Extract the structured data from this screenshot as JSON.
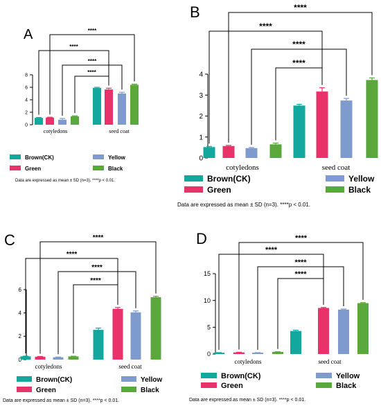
{
  "colors": {
    "brown_ck": "#13A89E",
    "green": "#E8336A",
    "yellow": "#7F9ACD",
    "black": "#5AA83C",
    "axis": "#000000"
  },
  "chart_data": [
    {
      "panel": "A",
      "type": "bar",
      "categories": [
        "cotyledons",
        "seed coat"
      ],
      "series": [
        {
          "name": "Brown(CK)",
          "values": [
            1.1,
            5.9
          ],
          "errors": [
            0.05,
            0.1
          ]
        },
        {
          "name": "Green",
          "values": [
            1.15,
            5.65
          ],
          "errors": [
            0.05,
            0.2
          ]
        },
        {
          "name": "Yellow",
          "values": [
            0.8,
            5.0
          ],
          "errors": [
            0.2,
            0.2
          ]
        },
        {
          "name": "Black",
          "values": [
            1.35,
            6.4
          ],
          "errors": [
            0.07,
            0.1
          ]
        }
      ],
      "ylim": [
        0,
        8
      ],
      "yticks": [
        0,
        2,
        4,
        6,
        8
      ],
      "significance": [
        "****",
        "****",
        "****",
        "****"
      ],
      "legend": [
        "Brown(CK)",
        "Green",
        "Yellow",
        "Black"
      ],
      "footnote": "Data are expressed as mean ± SD (n=3). ****p < 0.01."
    },
    {
      "panel": "B",
      "type": "bar",
      "categories": [
        "cotyledons",
        "seed coat"
      ],
      "series": [
        {
          "name": "Brown(CK)",
          "values": [
            0.52,
            2.5
          ],
          "errors": [
            0.03,
            0.06
          ]
        },
        {
          "name": "Green",
          "values": [
            0.57,
            3.17
          ],
          "errors": [
            0.03,
            0.18
          ]
        },
        {
          "name": "Yellow",
          "values": [
            0.47,
            2.74
          ],
          "errors": [
            0.03,
            0.1
          ]
        },
        {
          "name": "Black",
          "values": [
            0.65,
            3.72
          ],
          "errors": [
            0.06,
            0.1
          ]
        }
      ],
      "ylim": [
        0,
        4
      ],
      "yticks": [
        0,
        1,
        2,
        3,
        4
      ],
      "significance": [
        "****",
        "****",
        "****",
        "****"
      ],
      "legend": [
        "Brown(CK)",
        "Green",
        "Yellow",
        "Black"
      ],
      "footnote": "Data are expressed as mean ± SD (n=3). ****p < 0.01."
    },
    {
      "panel": "C",
      "type": "bar",
      "categories": [
        "cotyledons",
        "seed coat"
      ],
      "series": [
        {
          "name": "Brown(CK)",
          "values": [
            0.28,
            2.55
          ],
          "errors": [
            0.02,
            0.15
          ]
        },
        {
          "name": "Green",
          "values": [
            0.25,
            4.35
          ],
          "errors": [
            0.02,
            0.12
          ]
        },
        {
          "name": "Yellow",
          "values": [
            0.2,
            4.05
          ],
          "errors": [
            0.02,
            0.12
          ]
        },
        {
          "name": "Black",
          "values": [
            0.27,
            5.35
          ],
          "errors": [
            0.02,
            0.08
          ]
        }
      ],
      "ylim": [
        0,
        6
      ],
      "yticks": [
        0,
        2,
        4,
        6
      ],
      "significance": [
        "****",
        "****",
        "****",
        "****"
      ],
      "legend": [
        "Brown(CK)",
        "Green",
        "Yellow",
        "Black"
      ],
      "footnote": "Data are expressed as mean ± SD (n=3). ****p < 0.01."
    },
    {
      "panel": "D",
      "type": "bar",
      "categories": [
        "cotyledons",
        "seed coat"
      ],
      "series": [
        {
          "name": "Brown(CK)",
          "values": [
            0.25,
            4.3
          ],
          "errors": [
            0.02,
            0.15
          ]
        },
        {
          "name": "Green",
          "values": [
            0.3,
            8.6
          ],
          "errors": [
            0.03,
            0.1
          ]
        },
        {
          "name": "Yellow",
          "values": [
            0.25,
            8.3
          ],
          "errors": [
            0.02,
            0.1
          ]
        },
        {
          "name": "Black",
          "values": [
            0.4,
            9.5
          ],
          "errors": [
            0.03,
            0.1
          ]
        }
      ],
      "ylim": [
        0,
        15
      ],
      "yticks": [
        0,
        5,
        10,
        15
      ],
      "significance": [
        "****",
        "****",
        "****",
        "****"
      ],
      "legend": [
        "Brown(CK)",
        "Green",
        "Yellow",
        "Black"
      ],
      "footnote": "Data are expressed as mean ± SD (n=3). ****p < 0.01."
    }
  ]
}
